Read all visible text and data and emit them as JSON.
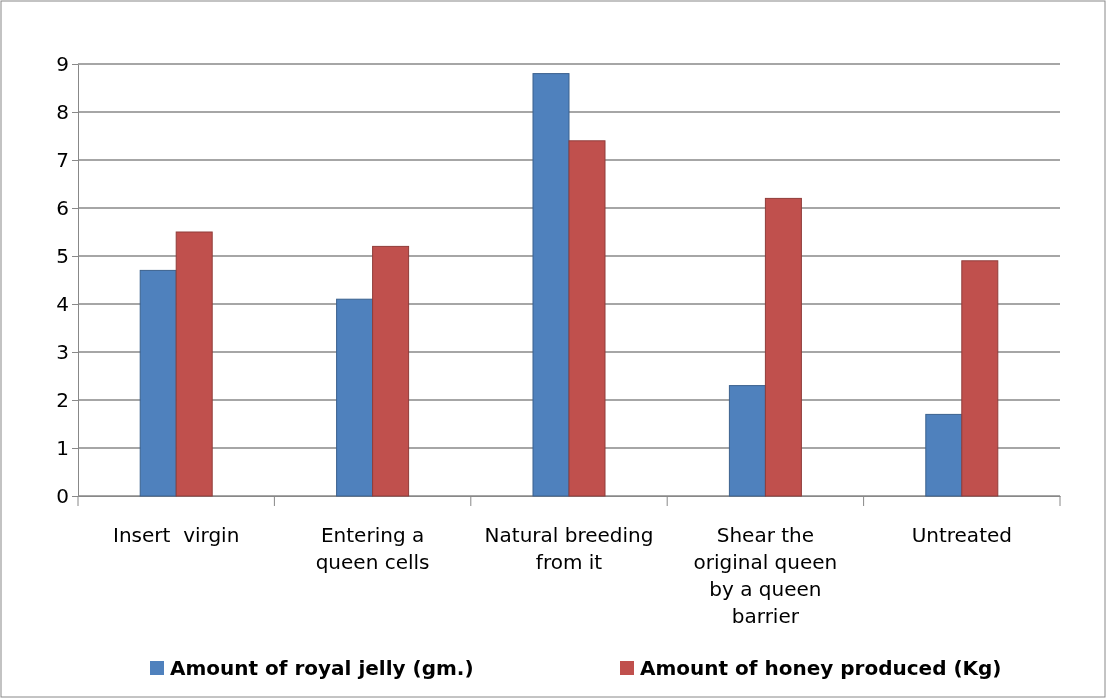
{
  "chart_data": {
    "type": "bar",
    "categories": [
      "Insert  virgin",
      "Entering a queen cells",
      "Natural breeding from it",
      "Shear the original queen by a queen barrier",
      "Untreated"
    ],
    "series": [
      {
        "name": "Amount of royal jelly (gm.)",
        "color": "#4f81bd",
        "values": [
          4.7,
          4.1,
          8.8,
          2.3,
          1.7
        ]
      },
      {
        "name": "Amount of honey produced (Kg)",
        "color": "#c0504d",
        "values": [
          5.5,
          5.2,
          7.4,
          6.2,
          4.9
        ]
      }
    ],
    "ylim": [
      0,
      9
    ],
    "yticks": [
      0,
      1,
      2,
      3,
      4,
      5,
      6,
      7,
      8,
      9
    ],
    "grid": "y",
    "legend": "bottom"
  }
}
